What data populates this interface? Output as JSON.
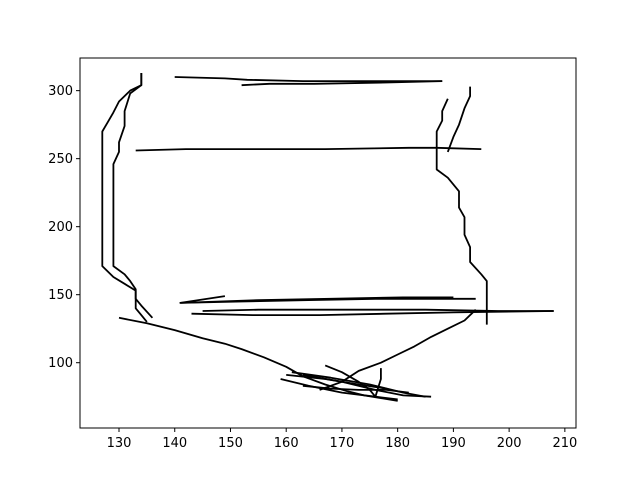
{
  "chart_data": {
    "type": "line",
    "title": "",
    "xlabel": "",
    "ylabel": "",
    "xlim": [
      123,
      212
    ],
    "ylim": [
      52,
      324
    ],
    "grid": false,
    "line_color": "#000000",
    "xticks": [
      130,
      140,
      150,
      160,
      170,
      180,
      190,
      200,
      210
    ],
    "yticks": [
      100,
      150,
      200,
      250,
      300
    ],
    "series": [
      {
        "points": [
          [
            134,
            313
          ],
          [
            134,
            304
          ],
          [
            132,
            300
          ],
          [
            130,
            292
          ],
          [
            129,
            284
          ],
          [
            128,
            277
          ],
          [
            127,
            270
          ],
          [
            127,
            258
          ],
          [
            127,
            230
          ],
          [
            127,
            200
          ],
          [
            127,
            171
          ],
          [
            129,
            163
          ],
          [
            131,
            158
          ],
          [
            133,
            153
          ],
          [
            133,
            147
          ],
          [
            134,
            142
          ],
          [
            136,
            133
          ]
        ]
      },
      {
        "points": [
          [
            134,
            313
          ],
          [
            134,
            304
          ],
          [
            132,
            298
          ],
          [
            131,
            285
          ],
          [
            131,
            274
          ],
          [
            130,
            262
          ],
          [
            130,
            255
          ],
          [
            129,
            246
          ],
          [
            129,
            215
          ],
          [
            129,
            208
          ],
          [
            129,
            190
          ],
          [
            129,
            171
          ],
          [
            131,
            165
          ],
          [
            132,
            160
          ],
          [
            133,
            154
          ],
          [
            133,
            146
          ],
          [
            133,
            140
          ],
          [
            134,
            135
          ],
          [
            135,
            130
          ]
        ]
      },
      {
        "points": [
          [
            140,
            310
          ],
          [
            149,
            309
          ],
          [
            153,
            308
          ],
          [
            163,
            307
          ],
          [
            175,
            307
          ],
          [
            188,
            307
          ]
        ]
      },
      {
        "points": [
          [
            152,
            304
          ],
          [
            157,
            305
          ],
          [
            165,
            305
          ],
          [
            178,
            306
          ],
          [
            188,
            307
          ]
        ]
      },
      {
        "points": [
          [
            193,
            303
          ],
          [
            193,
            296
          ],
          [
            192,
            287
          ],
          [
            191,
            275
          ],
          [
            190,
            266
          ],
          [
            189,
            255
          ]
        ]
      },
      {
        "points": [
          [
            189,
            294
          ],
          [
            188,
            285
          ],
          [
            188,
            278
          ],
          [
            187,
            270
          ],
          [
            187,
            255
          ],
          [
            187,
            242
          ],
          [
            189,
            236
          ],
          [
            191,
            226
          ],
          [
            191,
            214
          ],
          [
            192,
            207
          ],
          [
            192,
            194
          ],
          [
            193,
            185
          ],
          [
            193,
            174
          ],
          [
            195,
            165
          ],
          [
            196,
            160
          ],
          [
            196,
            147
          ],
          [
            196,
            138
          ],
          [
            196,
            128
          ]
        ]
      },
      {
        "points": [
          [
            133,
            256
          ],
          [
            142,
            257
          ],
          [
            155,
            257
          ],
          [
            167,
            257
          ],
          [
            182,
            258
          ],
          [
            187,
            258
          ],
          [
            195,
            257
          ]
        ]
      },
      {
        "points": [
          [
            149,
            149
          ],
          [
            141,
            144
          ],
          [
            152,
            145
          ],
          [
            164,
            146
          ],
          [
            176,
            147
          ],
          [
            186,
            147
          ],
          [
            194,
            147
          ]
        ]
      },
      {
        "points": [
          [
            141,
            144
          ],
          [
            155,
            146
          ],
          [
            168,
            147
          ],
          [
            181,
            148
          ],
          [
            190,
            148
          ]
        ]
      },
      {
        "points": [
          [
            145,
            138
          ],
          [
            155,
            139
          ],
          [
            170,
            139
          ],
          [
            185,
            139
          ],
          [
            198,
            138
          ],
          [
            208,
            138
          ]
        ]
      },
      {
        "points": [
          [
            143,
            136
          ],
          [
            154,
            135
          ],
          [
            166,
            135
          ],
          [
            178,
            136
          ],
          [
            190,
            137
          ],
          [
            208,
            138
          ]
        ]
      },
      {
        "points": [
          [
            130,
            133
          ],
          [
            135,
            129
          ],
          [
            140,
            124
          ],
          [
            145,
            118
          ],
          [
            149,
            114
          ],
          [
            152,
            110
          ],
          [
            156,
            104
          ],
          [
            160,
            97
          ],
          [
            163,
            90
          ],
          [
            167,
            84
          ],
          [
            171,
            79
          ],
          [
            174,
            76
          ],
          [
            177,
            74
          ],
          [
            180,
            72
          ]
        ]
      },
      {
        "points": [
          [
            166,
            80
          ],
          [
            170,
            86
          ],
          [
            173,
            94
          ],
          [
            177,
            100
          ],
          [
            180,
            106
          ],
          [
            183,
            112
          ],
          [
            186,
            119
          ],
          [
            189,
            125
          ],
          [
            192,
            131
          ],
          [
            194,
            139
          ]
        ]
      },
      {
        "points": [
          [
            167,
            98
          ],
          [
            170,
            93
          ],
          [
            173,
            86
          ],
          [
            175,
            80
          ],
          [
            176,
            75
          ],
          [
            177,
            88
          ],
          [
            177,
            96
          ]
        ]
      },
      {
        "points": [
          [
            159,
            88
          ],
          [
            164,
            83
          ],
          [
            170,
            78
          ],
          [
            176,
            75
          ],
          [
            180,
            73
          ]
        ]
      },
      {
        "points": [
          [
            161,
            93
          ],
          [
            168,
            89
          ],
          [
            175,
            84
          ],
          [
            181,
            78
          ],
          [
            185,
            75
          ]
        ]
      },
      {
        "points": [
          [
            163,
            91
          ],
          [
            170,
            86
          ],
          [
            176,
            80
          ],
          [
            181,
            76
          ],
          [
            186,
            75
          ]
        ]
      },
      {
        "points": [
          [
            163,
            83
          ],
          [
            168,
            81
          ],
          [
            173,
            80
          ],
          [
            178,
            80
          ],
          [
            182,
            78
          ]
        ]
      },
      {
        "points": [
          [
            160,
            91
          ],
          [
            167,
            88
          ],
          [
            173,
            84
          ],
          [
            178,
            81
          ]
        ]
      }
    ]
  }
}
